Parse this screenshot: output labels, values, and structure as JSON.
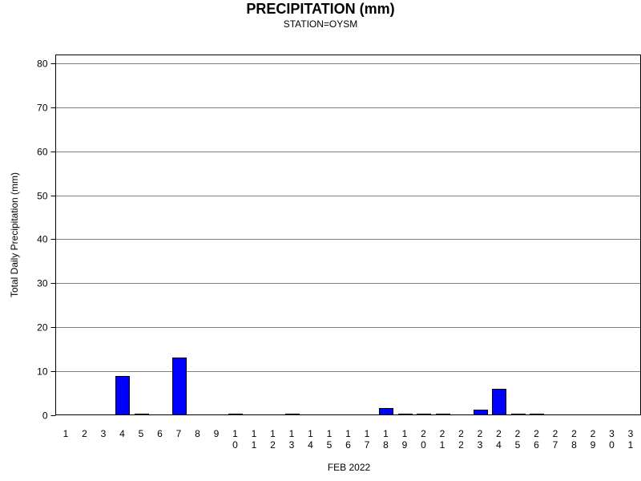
{
  "chart_data": {
    "type": "bar",
    "title": "PRECIPITATION (mm)",
    "subtitle": "STATION=OYSM",
    "xlabel": "FEB 2022",
    "ylabel": "Total Daily Precipitation (mm)",
    "ylim": [
      0,
      82
    ],
    "yticks": [
      0,
      10,
      20,
      30,
      40,
      50,
      60,
      70,
      80
    ],
    "grid": true,
    "bar_color": "#0000ff",
    "categories": [
      "1",
      "2",
      "3",
      "4",
      "5",
      "6",
      "7",
      "8",
      "9",
      "10",
      "11",
      "12",
      "13",
      "14",
      "15",
      "16",
      "17",
      "18",
      "19",
      "20",
      "21",
      "22",
      "23",
      "24",
      "25",
      "26",
      "27",
      "28",
      "29",
      "30",
      "31"
    ],
    "values": [
      null,
      null,
      null,
      8.9,
      0.2,
      null,
      13.1,
      null,
      null,
      0.2,
      null,
      null,
      0.2,
      null,
      null,
      null,
      null,
      1.5,
      0.2,
      0.2,
      0.2,
      null,
      1.2,
      5.9,
      0.2,
      0.2,
      null,
      null,
      null,
      null,
      null
    ]
  }
}
